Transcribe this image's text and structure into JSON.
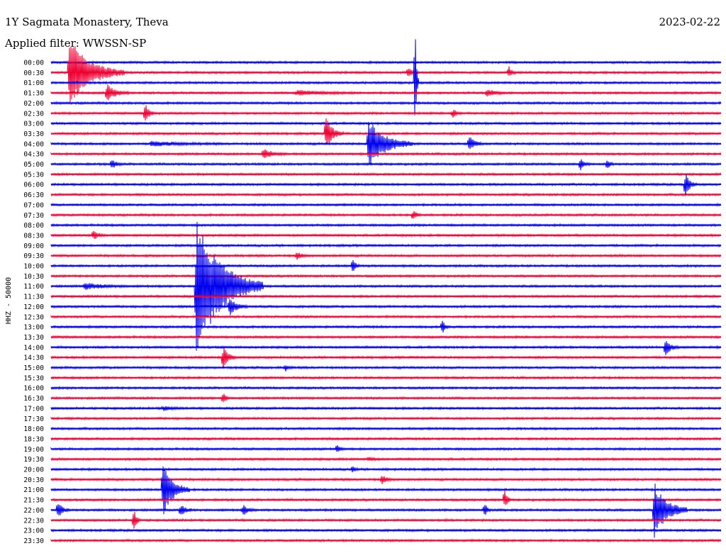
{
  "header": {
    "station": "1Y Sagmata Monastery, Theva",
    "date": "2023-02-22",
    "filter": "Applied filter: WWSSN-SP"
  },
  "chart_data": {
    "type": "line",
    "title": "1Y Sagmata Monastery, Theva",
    "date": "2023-02-22",
    "filter": "WWSSN-SP",
    "ylabel": "HHZ - 50000",
    "rows": [
      "00:00",
      "00:30",
      "01:00",
      "01:30",
      "02:00",
      "02:30",
      "03:00",
      "03:30",
      "04:00",
      "04:30",
      "05:00",
      "05:30",
      "06:00",
      "06:30",
      "07:00",
      "07:30",
      "08:00",
      "08:30",
      "09:00",
      "09:30",
      "10:00",
      "10:30",
      "11:00",
      "11:30",
      "12:00",
      "12:30",
      "13:00",
      "13:30",
      "14:00",
      "14:30",
      "15:00",
      "15:30",
      "16:00",
      "16:30",
      "17:00",
      "17:30",
      "18:00",
      "18:30",
      "19:00",
      "19:30",
      "20:00",
      "20:30",
      "21:00",
      "21:30",
      "22:00",
      "22:30",
      "23:00",
      "23:30"
    ],
    "colors": {
      "even_row": "#0000ee",
      "odd_row": "#ee0033"
    },
    "events": [
      {
        "row": 1,
        "minute": 0.8,
        "amp": 3.5,
        "dur": 2.5
      },
      {
        "row": 1,
        "minute": 16,
        "amp": 0.4,
        "dur": 0.5
      },
      {
        "row": 1,
        "minute": 20.5,
        "amp": 0.6,
        "dur": 0.3
      },
      {
        "row": 2,
        "minute": 16.3,
        "amp": 8,
        "dur": 0.15
      },
      {
        "row": 3,
        "minute": 2.5,
        "amp": 0.8,
        "dur": 1
      },
      {
        "row": 3,
        "minute": 11,
        "amp": 0.2,
        "dur": 3
      },
      {
        "row": 3,
        "minute": 19.5,
        "amp": 0.4,
        "dur": 0.8
      },
      {
        "row": 5,
        "minute": 4.2,
        "amp": 1.2,
        "dur": 0.4
      },
      {
        "row": 5,
        "minute": 18,
        "amp": 0.4,
        "dur": 0.4
      },
      {
        "row": 7,
        "minute": 12.3,
        "amp": 1.6,
        "dur": 0.8
      },
      {
        "row": 8,
        "minute": 4.5,
        "amp": 0.2,
        "dur": 3
      },
      {
        "row": 8,
        "minute": 14.2,
        "amp": 2.5,
        "dur": 2
      },
      {
        "row": 8,
        "minute": 18.7,
        "amp": 0.9,
        "dur": 0.6
      },
      {
        "row": 9,
        "minute": 9.5,
        "amp": 0.5,
        "dur": 1
      },
      {
        "row": 10,
        "minute": 2.7,
        "amp": 0.5,
        "dur": 0.5
      },
      {
        "row": 10,
        "minute": 23.7,
        "amp": 0.6,
        "dur": 0.4
      },
      {
        "row": 10,
        "minute": 24.9,
        "amp": 0.6,
        "dur": 0.3
      },
      {
        "row": 12,
        "minute": 28.4,
        "amp": 1.2,
        "dur": 0.5
      },
      {
        "row": 15,
        "minute": 16.2,
        "amp": 0.5,
        "dur": 0.4
      },
      {
        "row": 17,
        "minute": 1.9,
        "amp": 0.5,
        "dur": 0.5
      },
      {
        "row": 19,
        "minute": 11,
        "amp": 0.4,
        "dur": 0.5
      },
      {
        "row": 20,
        "minute": 13.5,
        "amp": 0.9,
        "dur": 0.3
      },
      {
        "row": 22,
        "minute": 1.5,
        "amp": 0.3,
        "dur": 2
      },
      {
        "row": 22,
        "minute": 6.5,
        "amp": 7,
        "dur": 3
      },
      {
        "row": 24,
        "minute": 8,
        "amp": 0.9,
        "dur": 0.8
      },
      {
        "row": 26,
        "minute": 17.5,
        "amp": 0.8,
        "dur": 0.3
      },
      {
        "row": 28,
        "minute": 27.5,
        "amp": 0.9,
        "dur": 0.6
      },
      {
        "row": 29,
        "minute": 7.7,
        "amp": 1.1,
        "dur": 0.6
      },
      {
        "row": 30,
        "minute": 10.5,
        "amp": 0.3,
        "dur": 0.3
      },
      {
        "row": 33,
        "minute": 7.7,
        "amp": 0.6,
        "dur": 0.3
      },
      {
        "row": 34,
        "minute": 5,
        "amp": 0.2,
        "dur": 1
      },
      {
        "row": 38,
        "minute": 12.8,
        "amp": 0.5,
        "dur": 0.3
      },
      {
        "row": 39,
        "minute": 14.2,
        "amp": 0.2,
        "dur": 0.5
      },
      {
        "row": 40,
        "minute": 13.5,
        "amp": 0.4,
        "dur": 0.3
      },
      {
        "row": 41,
        "minute": 14.8,
        "amp": 0.5,
        "dur": 0.5
      },
      {
        "row": 42,
        "minute": 5,
        "amp": 2.8,
        "dur": 1.2
      },
      {
        "row": 43,
        "minute": 20.3,
        "amp": 1.1,
        "dur": 0.3
      },
      {
        "row": 44,
        "minute": 0.3,
        "amp": 0.9,
        "dur": 0.5
      },
      {
        "row": 44,
        "minute": 5.8,
        "amp": 0.6,
        "dur": 0.5
      },
      {
        "row": 44,
        "minute": 8.6,
        "amp": 0.5,
        "dur": 0.5
      },
      {
        "row": 44,
        "minute": 19.4,
        "amp": 0.8,
        "dur": 0.3
      },
      {
        "row": 44,
        "minute": 27,
        "amp": 2.8,
        "dur": 1.5
      },
      {
        "row": 45,
        "minute": 3.7,
        "amp": 1.2,
        "dur": 0.3
      }
    ]
  }
}
